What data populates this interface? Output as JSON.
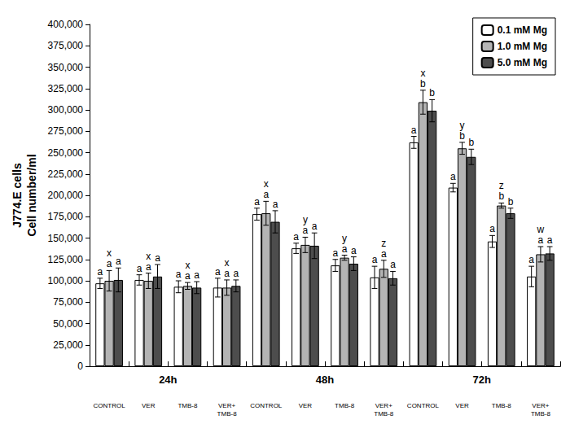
{
  "chart_data": {
    "type": "bar",
    "y_label": "J774.E cells\nCell number/ml",
    "categories": [
      "CONTROL",
      "VER",
      "TMB-8",
      "VER+\nTMB-8",
      "CONTROL",
      "VER",
      "TMB-8",
      "VER+\nTMB-8",
      "CONTROL",
      "VER",
      "TMB-8",
      "VER+\nTMB-8"
    ],
    "x_groups": [
      "24h",
      "48h",
      "72h"
    ],
    "ylim": [
      0,
      400000
    ],
    "yticks": [
      0,
      25000,
      50000,
      75000,
      100000,
      125000,
      150000,
      175000,
      200000,
      225000,
      250000,
      275000,
      300000,
      325000,
      350000,
      375000,
      400000
    ],
    "grid": false,
    "legend": "upper right",
    "series": [
      {
        "name": "0.1 mM Mg",
        "color": "#ffffff",
        "values": [
          97000,
          101000,
          93000,
          92000,
          178000,
          138000,
          118000,
          104000,
          262000,
          209000,
          146000,
          105000
        ],
        "error": [
          6000,
          6000,
          7000,
          11000,
          7000,
          6000,
          7000,
          13000,
          7000,
          5000,
          7000,
          12000
        ],
        "letters": [
          "a",
          "a",
          "a",
          "a",
          "a",
          "a",
          "a",
          "a",
          "a",
          "a",
          "a",
          "a"
        ]
      },
      {
        "name": "1.0 mM Mg",
        "color": "#b4b4b4",
        "values": [
          100000,
          100000,
          94000,
          92000,
          179000,
          142000,
          127000,
          114000,
          309000,
          255000,
          188000,
          131000
        ],
        "error": [
          12000,
          9000,
          4000,
          9000,
          14000,
          9000,
          3000,
          10000,
          14000,
          7000,
          3000,
          9000
        ],
        "letters": [
          "a",
          "a",
          "a",
          "a",
          "a",
          "a",
          "a",
          "a",
          "b",
          "b",
          "b",
          "a"
        ],
        "letters_top": [
          "x",
          "x",
          "x",
          "x",
          "x",
          "y",
          "y",
          "z",
          "x",
          "y",
          "z",
          "w"
        ]
      },
      {
        "name": "5.0 mM Mg",
        "color": "#4d4d4d",
        "values": [
          101000,
          105000,
          92000,
          94000,
          169000,
          141000,
          120000,
          103000,
          299000,
          245000,
          179000,
          132000
        ],
        "error": [
          14000,
          14000,
          7000,
          7000,
          13000,
          15000,
          8000,
          8000,
          13000,
          9000,
          6000,
          8000
        ],
        "letters": [
          "a",
          "a",
          "a",
          "a",
          "a",
          "a",
          "a",
          "a",
          "b",
          "b",
          "b",
          "a"
        ]
      }
    ]
  }
}
